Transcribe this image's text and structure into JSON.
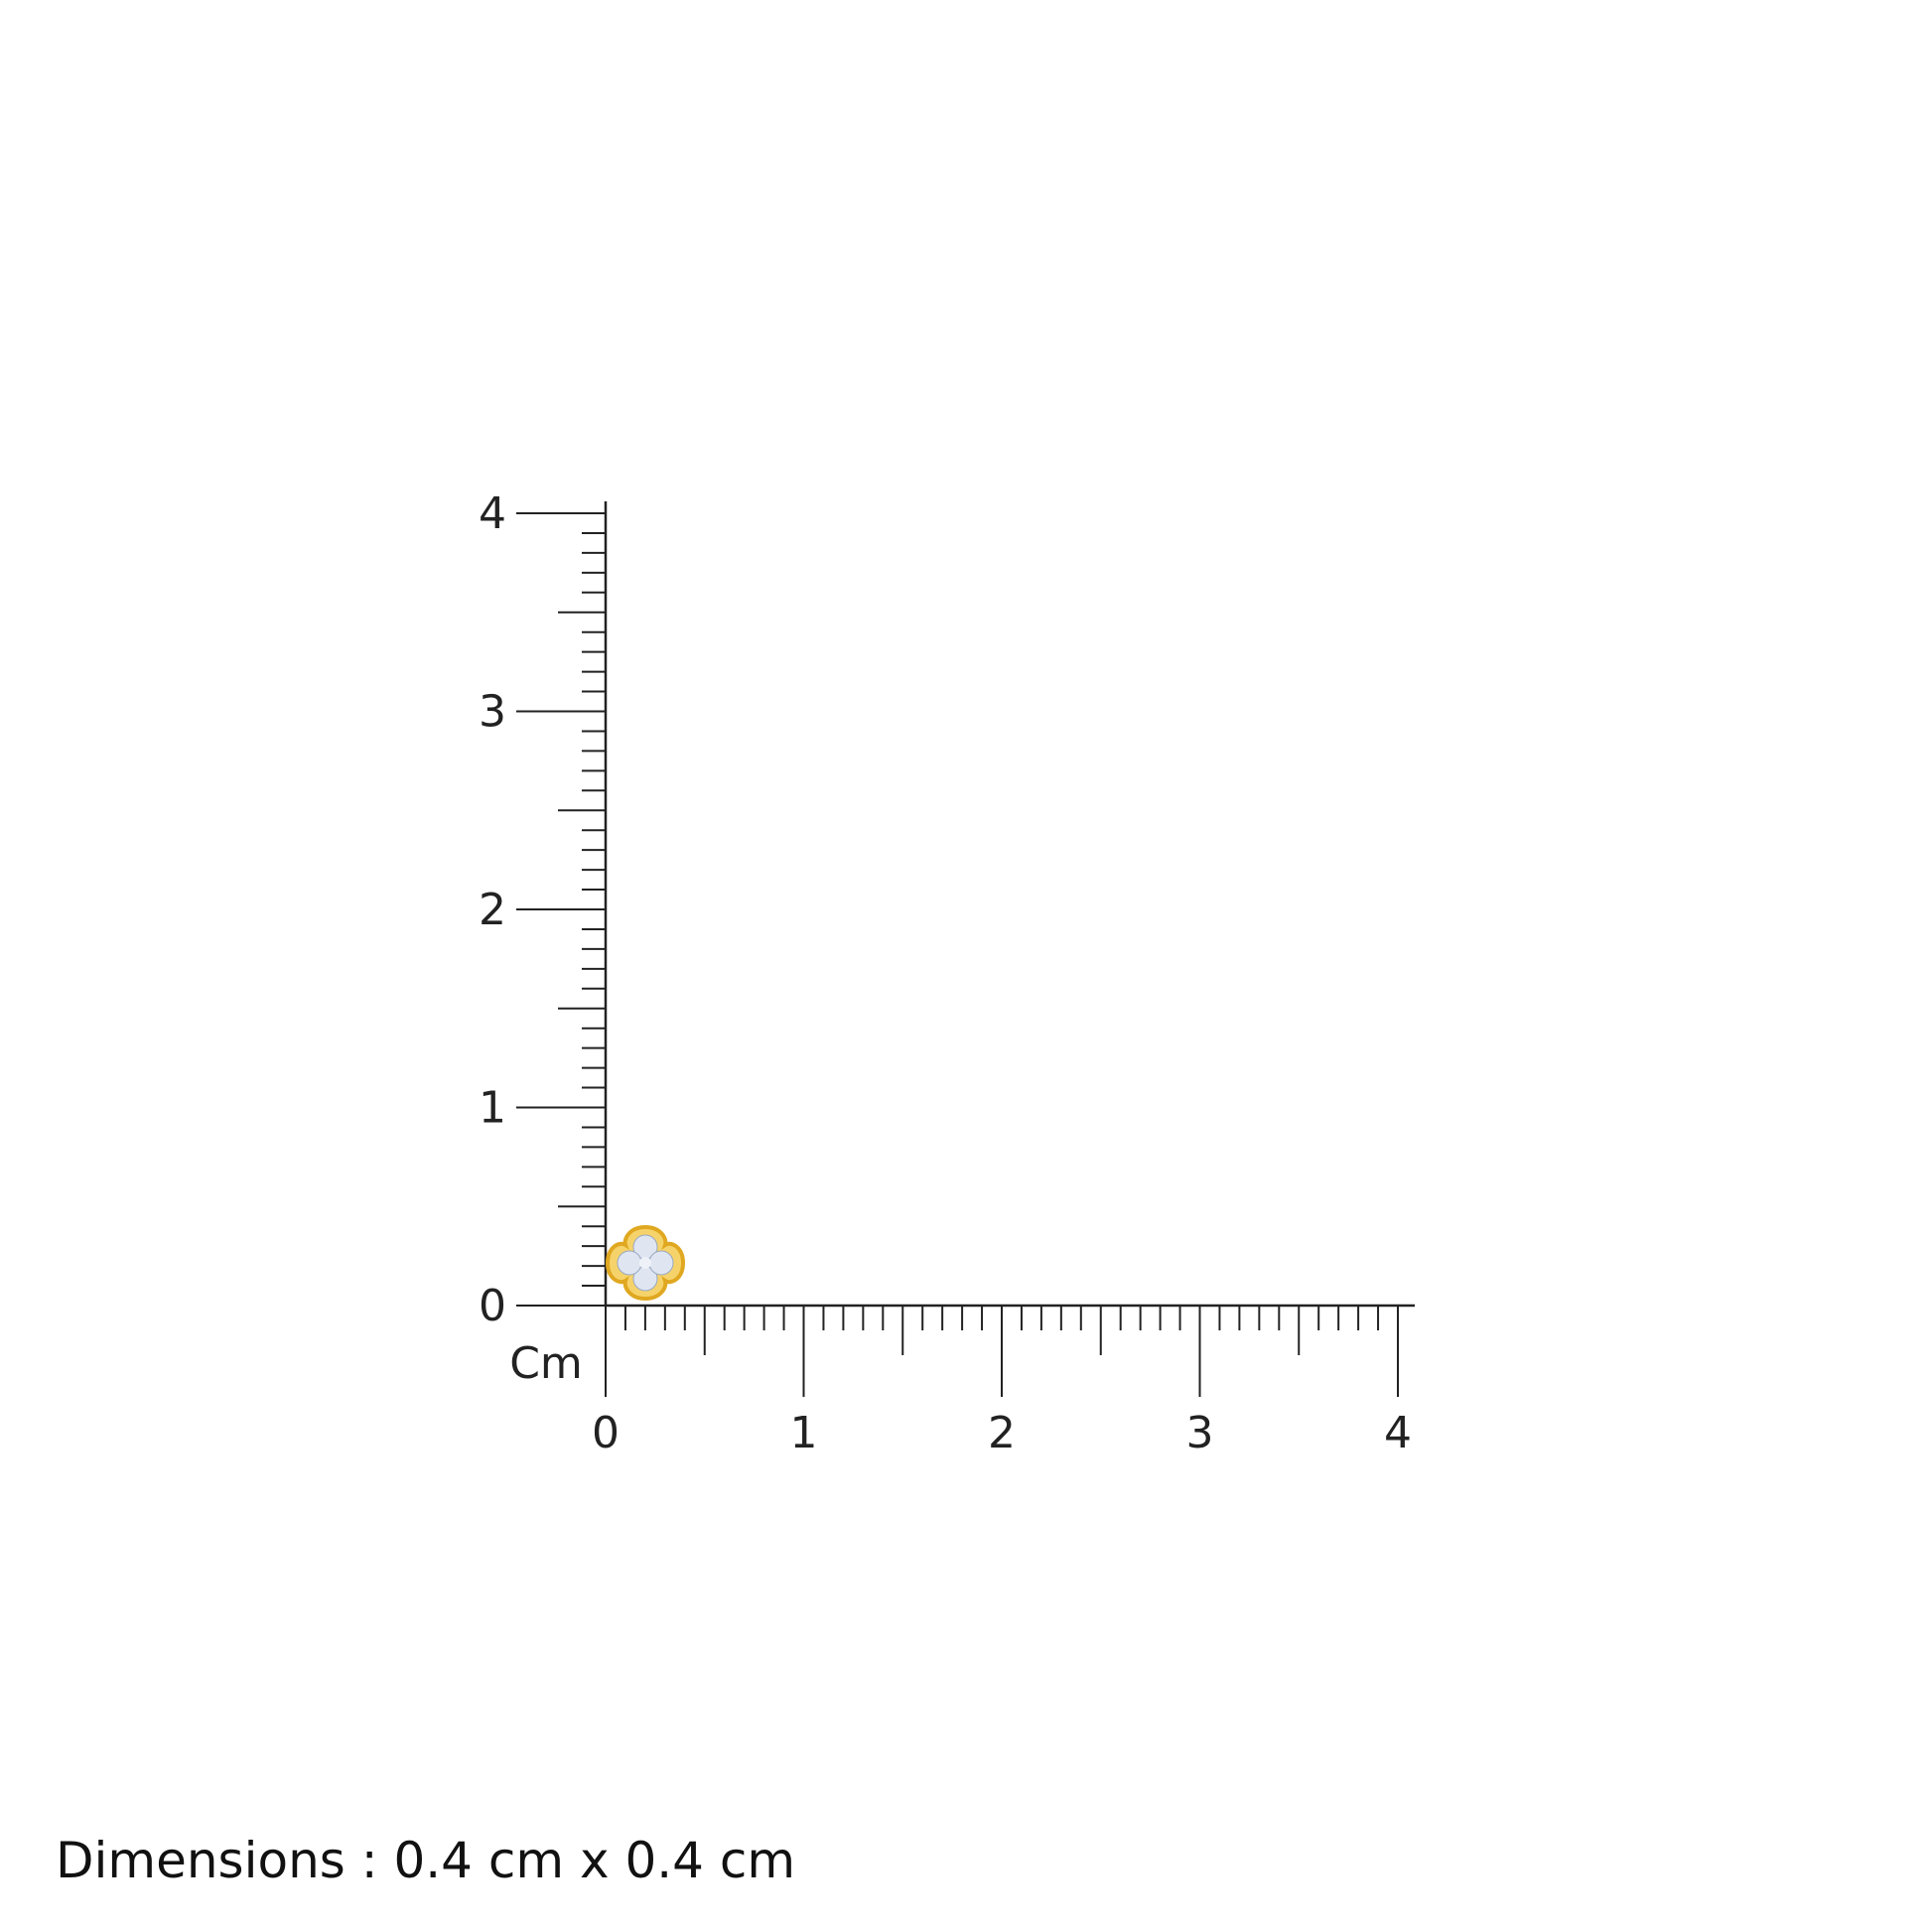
{
  "chart_data": {
    "type": "ruler",
    "unit_label": "Cm",
    "x_axis": {
      "range": [
        0,
        4
      ],
      "tick_labels": [
        "0",
        "1",
        "2",
        "3",
        "4"
      ],
      "minor_step": 0.1
    },
    "y_axis": {
      "range": [
        0,
        4
      ],
      "tick_labels": [
        "0",
        "1",
        "2",
        "3",
        "4"
      ],
      "minor_step": 0.1
    },
    "item": {
      "type": "clover stud earring",
      "width_cm": 0.4,
      "height_cm": 0.4,
      "metal_color": "#e8b423",
      "stone_color": "#dfe6f2"
    }
  },
  "caption": "Dimensions : 0.4 cm x 0.4 cm"
}
